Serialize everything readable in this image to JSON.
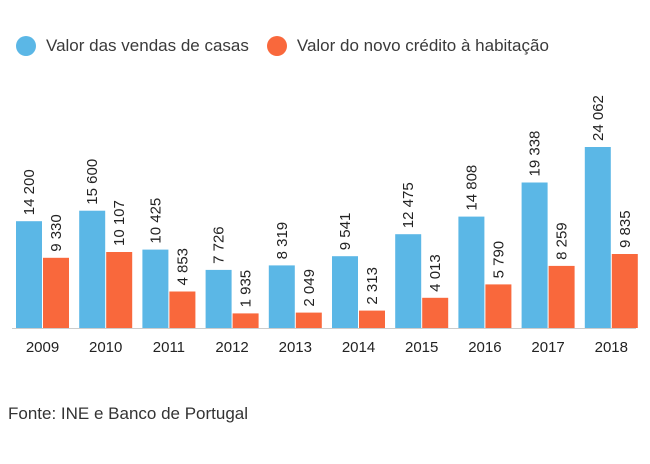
{
  "chart_data": {
    "type": "bar",
    "categories": [
      "2009",
      "2010",
      "2011",
      "2012",
      "2013",
      "2014",
      "2015",
      "2016",
      "2017",
      "2018"
    ],
    "series": [
      {
        "name": "Valor das vendas de casas",
        "color": "#5bb7e6",
        "values": [
          14200,
          15600,
          10425,
          7726,
          8319,
          9541,
          12475,
          14808,
          19338,
          24062
        ],
        "labels": [
          "14 200",
          "15 600",
          "10 425",
          "7 726",
          "8 319",
          "9 541",
          "12 475",
          "14 808",
          "19 338",
          "24 062"
        ]
      },
      {
        "name": "Valor do novo crédito à habitação",
        "color": "#f9683c",
        "values": [
          9330,
          10107,
          4853,
          1935,
          2049,
          2313,
          4013,
          5790,
          8259,
          9835
        ],
        "labels": [
          "9 330",
          "10 107",
          "4 853",
          "1 935",
          "2 049",
          "2 313",
          "4 013",
          "5 790",
          "8 259",
          "9 835"
        ]
      }
    ],
    "ylim": [
      0,
      24062
    ],
    "grid": false,
    "legend": "top-left"
  },
  "source": "Fonte: INE e Banco de Portugal"
}
